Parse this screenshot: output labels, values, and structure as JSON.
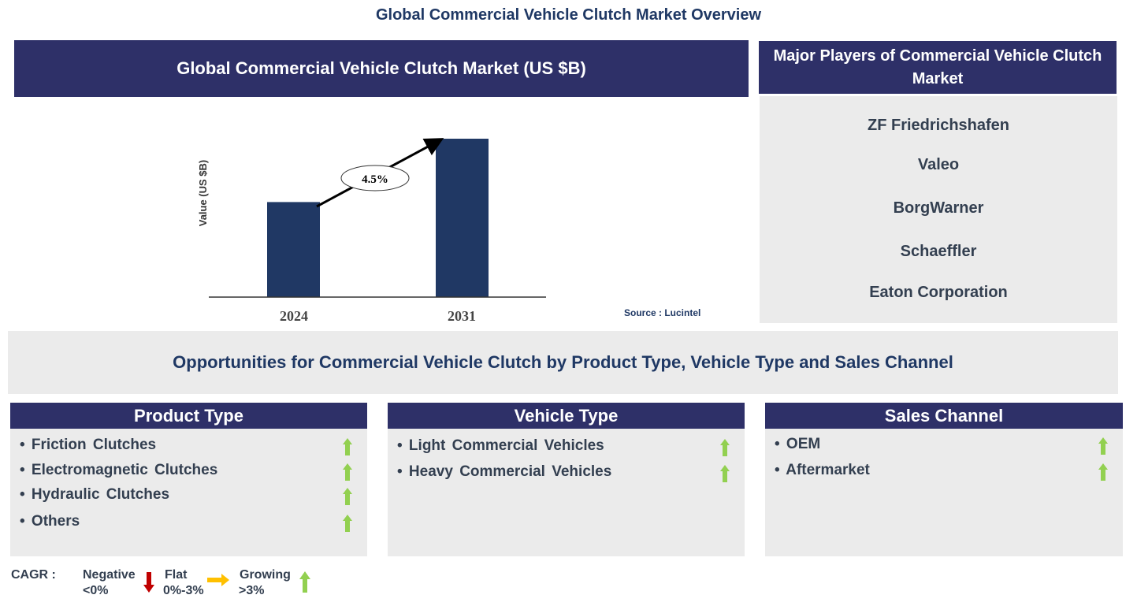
{
  "title": "Global Commercial Vehicle Clutch Market Overview",
  "chart_header": "Global Commercial Vehicle Clutch Market (US $B)",
  "chart_data": {
    "type": "bar",
    "categories": [
      "2024",
      "2031"
    ],
    "values": [
      0.6,
      1.0
    ],
    "ylabel": "Value (US $B)",
    "annotation": "4.5%",
    "source": "Source : Lucintel",
    "color": "#203864"
  },
  "players": {
    "header": "Major Players of Commercial Vehicle Clutch Market",
    "items": [
      "ZF Friedrichshafen",
      "Valeo",
      "BorgWarner",
      "Schaeffler",
      "Eaton Corporation"
    ]
  },
  "opportunities": "Opportunities for Commercial Vehicle Clutch by Product Type, Vehicle Type and Sales Channel",
  "segments": [
    {
      "header": "Product Type",
      "items": [
        "• Friction  Clutches",
        "• Electromagnetic  Clutches",
        "• Hydraulic  Clutches",
        "• Others"
      ],
      "trend": "growing"
    },
    {
      "header": "Vehicle Type",
      "items": [
        "• Light Commercial Vehicles",
        "• Heavy Commercial Vehicles"
      ],
      "trend": "growing"
    },
    {
      "header": "Sales Channel",
      "items": [
        "• OEM",
        "• Aftermarket"
      ],
      "trend": "growing"
    }
  ],
  "legend": {
    "label": "CAGR  :",
    "negative": "Negative",
    "negative_range": "<0%",
    "flat": "Flat",
    "flat_range": "0%-3%",
    "growing": "Growing",
    "growing_range": ">3%",
    "colors": {
      "negative": "#c00000",
      "flat": "#ffc000",
      "growing": "#92d050"
    }
  }
}
